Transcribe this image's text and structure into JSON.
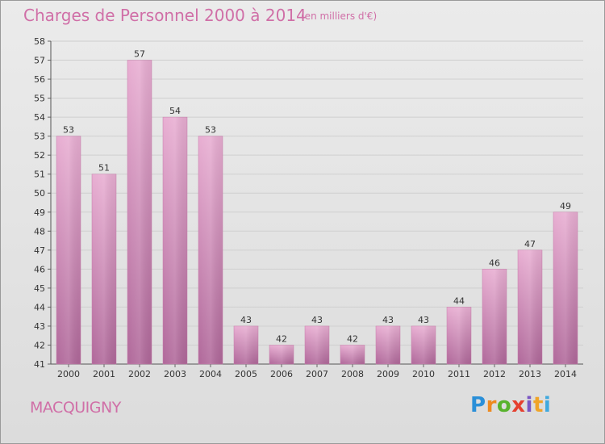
{
  "header": {
    "title": "Charges de Personnel 2000 à 2014",
    "subtitle": "(en milliers d'€)"
  },
  "footer": {
    "place": "MACQUIGNY",
    "logo": "Proxiti"
  },
  "colors": {
    "bar_light": "#e4a8cc",
    "bar_dark": "#b06896",
    "title": "#d06fa7",
    "background": "#e2e2e2"
  },
  "chart_data": {
    "type": "bar",
    "title": "Charges de Personnel 2000 à 2014",
    "subtitle": "(en milliers d'€)",
    "categories": [
      "2000",
      "2001",
      "2002",
      "2003",
      "2004",
      "2005",
      "2006",
      "2007",
      "2008",
      "2009",
      "2010",
      "2011",
      "2012",
      "2013",
      "2014"
    ],
    "values": [
      53,
      51,
      57,
      54,
      53,
      43,
      42,
      43,
      42,
      43,
      43,
      44,
      46,
      47,
      49
    ],
    "ylim": [
      41,
      58
    ],
    "yticks": [
      41,
      42,
      43,
      44,
      45,
      46,
      47,
      48,
      49,
      50,
      51,
      52,
      53,
      54,
      55,
      56,
      57,
      58
    ],
    "grid": true,
    "legend": "none"
  }
}
